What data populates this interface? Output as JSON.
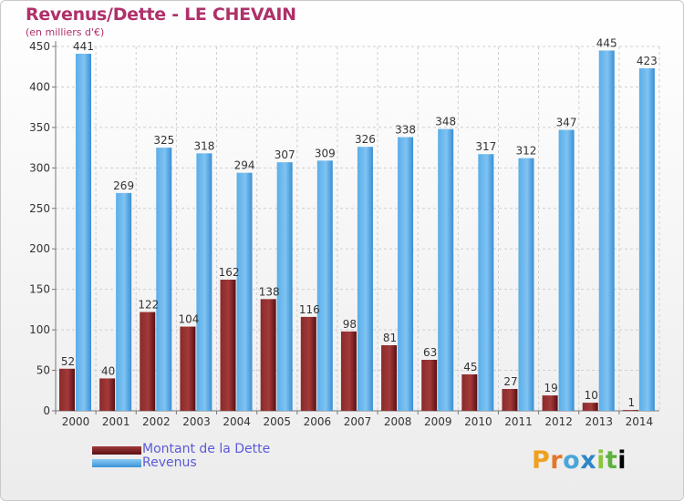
{
  "header": {
    "title": "Revenus/Dette - LE CHEVAIN",
    "subtitle": "(en milliers d'€)"
  },
  "legend": {
    "debt_label": "Montant de la Dette",
    "revenue_label": "Revenus"
  },
  "brand": {
    "name": "Proxiti",
    "chars": [
      "P",
      "r",
      "o",
      "x",
      "i",
      "t",
      "i"
    ]
  },
  "colors": {
    "debt_top": "#a33a3a",
    "debt_bottom": "#5a0f12",
    "revenue_top": "#7fc3f2",
    "revenue_bottom": "#3a8fd4",
    "title": "#b0306a",
    "legend_text": "#5a5ad8"
  },
  "chart_data": {
    "type": "bar",
    "title": "Revenus/Dette - LE CHEVAIN",
    "ylabel": "(en milliers d'€)",
    "xlabel": "",
    "categories": [
      "2000",
      "2001",
      "2002",
      "2003",
      "2004",
      "2005",
      "2006",
      "2007",
      "2008",
      "2009",
      "2010",
      "2011",
      "2012",
      "2013",
      "2014"
    ],
    "series": [
      {
        "name": "Montant de la Dette",
        "values": [
          52,
          40,
          122,
          104,
          162,
          138,
          116,
          98,
          81,
          63,
          45,
          27,
          19,
          10,
          1
        ]
      },
      {
        "name": "Revenus",
        "values": [
          441,
          269,
          325,
          318,
          294,
          307,
          309,
          326,
          338,
          348,
          317,
          312,
          347,
          445,
          423
        ]
      }
    ],
    "ylim": [
      0,
      450
    ],
    "yticks": [
      0,
      50,
      100,
      150,
      200,
      250,
      300,
      350,
      400,
      450
    ],
    "grid": true,
    "legend_position": "bottom-left"
  }
}
